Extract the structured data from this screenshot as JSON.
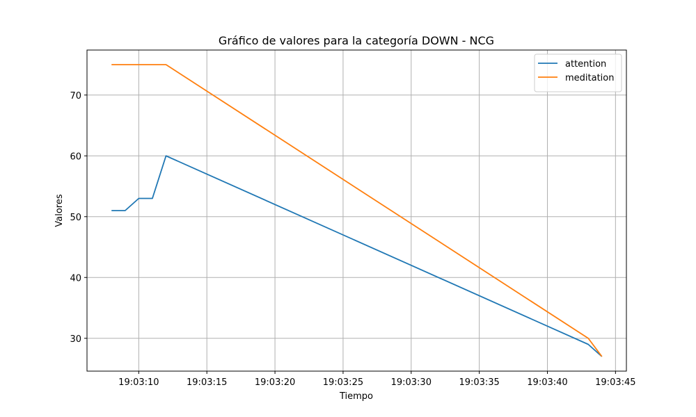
{
  "chart_data": {
    "type": "line",
    "title": "Gráfico de valores para la categoría DOWN - NCG",
    "xlabel": "Tiempo",
    "ylabel": "Valores",
    "x_tick_labels": [
      "19:03:10",
      "19:03:15",
      "19:03:20",
      "19:03:25",
      "19:03:30",
      "19:03:35",
      "19:03:40",
      "19:03:45"
    ],
    "y_tick_labels": [
      "30",
      "40",
      "50",
      "60",
      "70"
    ],
    "xlim": [
      "19:03:06.2",
      "19:03:45.8"
    ],
    "ylim": [
      24.6,
      77.4
    ],
    "grid": true,
    "legend_position": "top-right",
    "series": [
      {
        "name": "attention",
        "color": "#1f77b4",
        "points": [
          {
            "x": "19:03:08",
            "y": 51
          },
          {
            "x": "19:03:09",
            "y": 51
          },
          {
            "x": "19:03:10",
            "y": 53
          },
          {
            "x": "19:03:11",
            "y": 53
          },
          {
            "x": "19:03:12",
            "y": 60
          },
          {
            "x": "19:03:43",
            "y": 29
          },
          {
            "x": "19:03:44",
            "y": 27
          }
        ]
      },
      {
        "name": "meditation",
        "color": "#ff7f0e",
        "points": [
          {
            "x": "19:03:08",
            "y": 75
          },
          {
            "x": "19:03:12",
            "y": 75
          },
          {
            "x": "19:03:43",
            "y": 30
          },
          {
            "x": "19:03:44",
            "y": 27
          }
        ]
      }
    ]
  }
}
